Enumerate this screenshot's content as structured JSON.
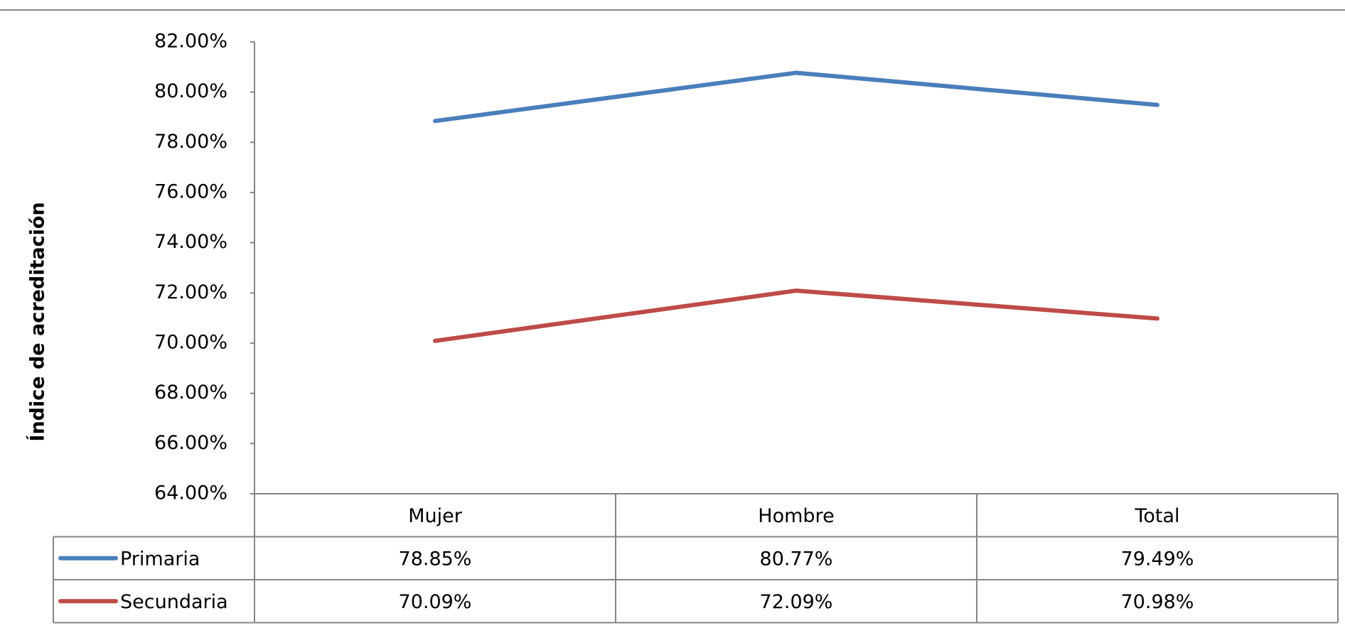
{
  "chart_data": {
    "type": "line",
    "y_label": "Índice de acreditación",
    "categories": [
      "Mujer",
      "Hombre",
      "Total"
    ],
    "series": [
      {
        "name": "Primaria",
        "color": "#4a7ebb",
        "values": [
          78.85,
          80.77,
          79.49
        ],
        "value_labels": [
          "78.85%",
          "80.77%",
          "79.49%"
        ]
      },
      {
        "name": "Secundaria",
        "color": "#be4b48",
        "values": [
          70.09,
          72.09,
          70.98
        ],
        "value_labels": [
          "70.09%",
          "72.09%",
          "70.98%"
        ]
      }
    ],
    "ylim": [
      64,
      82
    ],
    "yticks": [
      {
        "value": 64,
        "label": "64.00%"
      },
      {
        "value": 66,
        "label": "66.00%"
      },
      {
        "value": 68,
        "label": "68.00%"
      },
      {
        "value": 70,
        "label": "70.00%"
      },
      {
        "value": 72,
        "label": "72.00%"
      },
      {
        "value": 74,
        "label": "74.00%"
      },
      {
        "value": 76,
        "label": "76.00%"
      },
      {
        "value": 78,
        "label": "78.00%"
      },
      {
        "value": 80,
        "label": "80.00%"
      },
      {
        "value": 82,
        "label": "82.00%"
      }
    ],
    "grid": false,
    "data_table": true
  }
}
